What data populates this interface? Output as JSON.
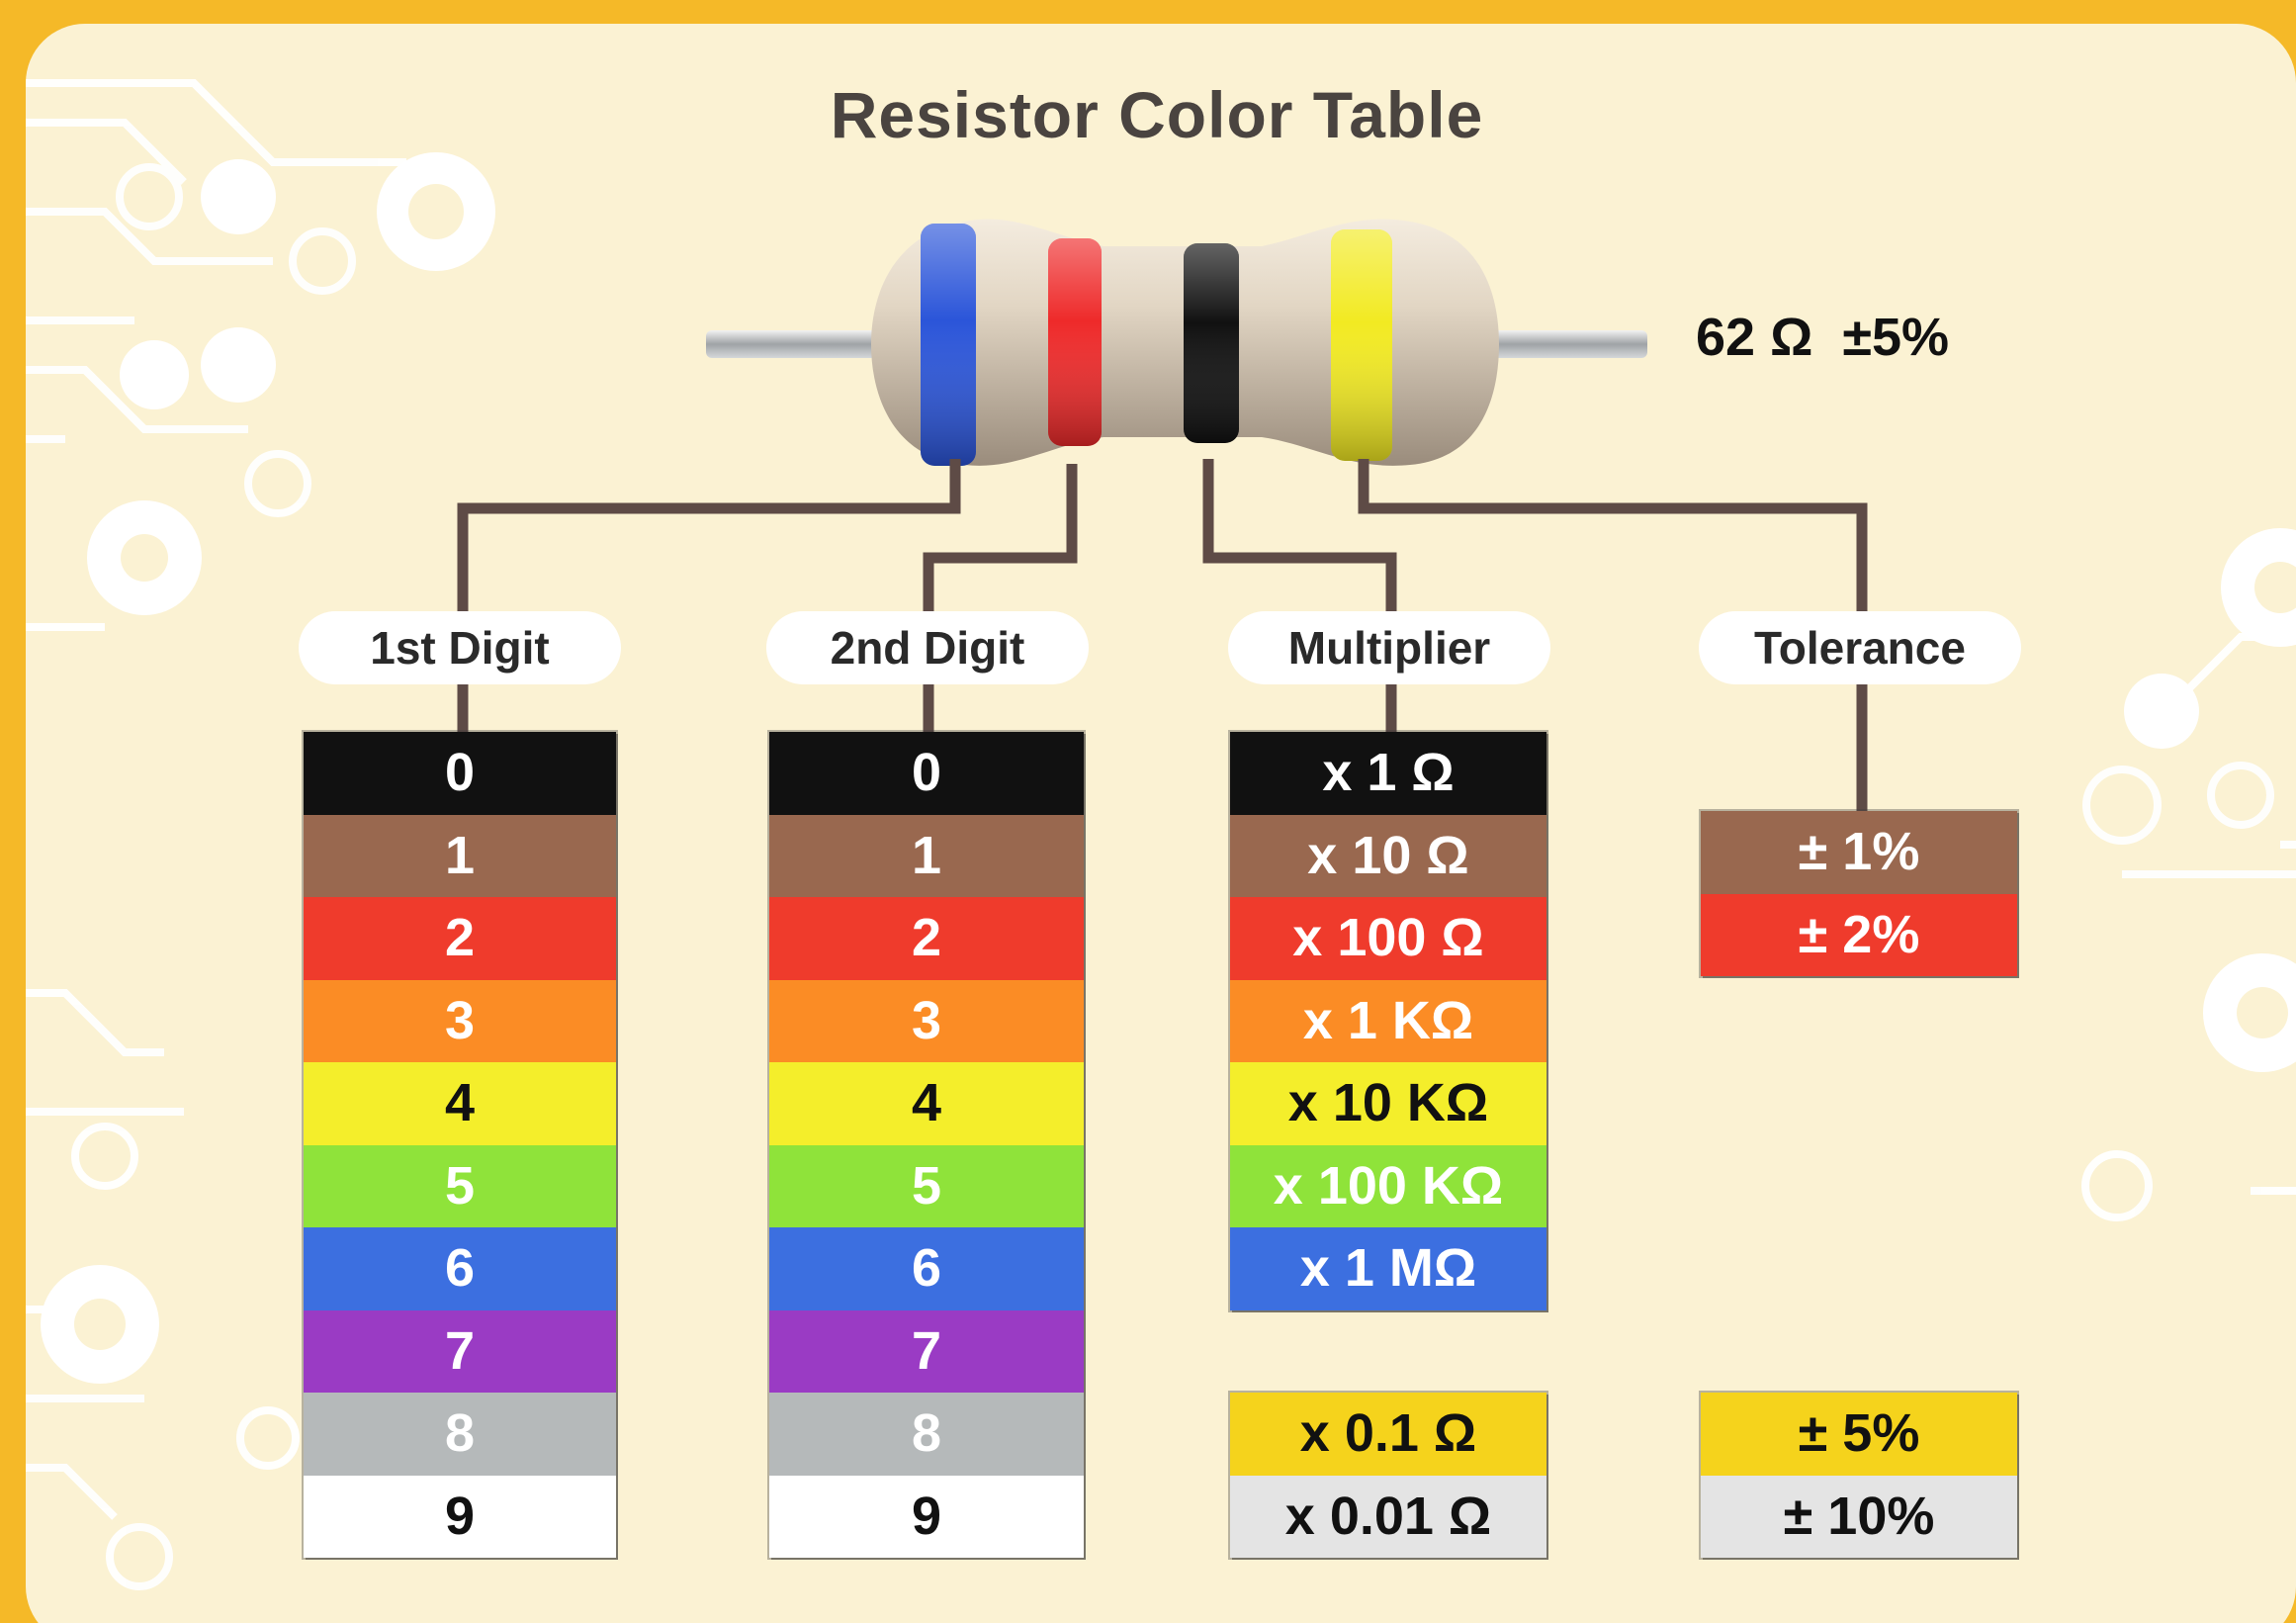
{
  "title": "Resistor Color Table",
  "example_value": "62 Ω  ±5%",
  "headers": {
    "first_digit": "1st Digit",
    "second_digit": "2nd Digit",
    "multiplier": "Multiplier",
    "tolerance": "Tolerance"
  },
  "resistor_bands": [
    "#2b55d9",
    "#ee2a2a",
    "#111111",
    "#f2ea22"
  ],
  "digits": [
    {
      "label": "0",
      "color": "#111111",
      "text_color": "light"
    },
    {
      "label": "1",
      "color": "#99684f",
      "text_color": "light"
    },
    {
      "label": "2",
      "color": "#ef3b2c",
      "text_color": "light"
    },
    {
      "label": "3",
      "color": "#fb8c25",
      "text_color": "light"
    },
    {
      "label": "4",
      "color": "#f4ee2b",
      "text_color": "dark"
    },
    {
      "label": "5",
      "color": "#8fe33a",
      "text_color": "light"
    },
    {
      "label": "6",
      "color": "#3c6fe0",
      "text_color": "light"
    },
    {
      "label": "7",
      "color": "#9a3bc4",
      "text_color": "light"
    },
    {
      "label": "8",
      "color": "#b5b9ba",
      "text_color": "light"
    },
    {
      "label": "9",
      "color": "#ffffff",
      "text_color": "dark"
    }
  ],
  "multipliers": [
    {
      "label": "x 1 Ω",
      "color": "#111111",
      "text_color": "light"
    },
    {
      "label": "x 10 Ω",
      "color": "#99684f",
      "text_color": "light"
    },
    {
      "label": "x 100 Ω",
      "color": "#ef3b2c",
      "text_color": "light"
    },
    {
      "label": "x 1 KΩ",
      "color": "#fb8c25",
      "text_color": "light"
    },
    {
      "label": "x 10 KΩ",
      "color": "#f4ee2b",
      "text_color": "dark"
    },
    {
      "label": "x 100 KΩ",
      "color": "#8fe33a",
      "text_color": "light"
    },
    {
      "label": "x 1 MΩ",
      "color": "#3c6fe0",
      "text_color": "light"
    }
  ],
  "fractional_multipliers": [
    {
      "label": "x 0.1 Ω",
      "color": "#f5d31c",
      "text_color": "dark"
    },
    {
      "label": "x 0.01 Ω",
      "color": "#e4e4e4",
      "text_color": "dark"
    }
  ],
  "tolerances_top": [
    {
      "label": "± 1%",
      "color": "#99684f",
      "text_color": "light"
    },
    {
      "label": "± 2%",
      "color": "#ef3b2c",
      "text_color": "light"
    }
  ],
  "tolerances_bottom": [
    {
      "label": "± 5%",
      "color": "#f5d31c",
      "text_color": "dark"
    },
    {
      "label": "± 10%",
      "color": "#e4e4e4",
      "text_color": "dark"
    }
  ]
}
